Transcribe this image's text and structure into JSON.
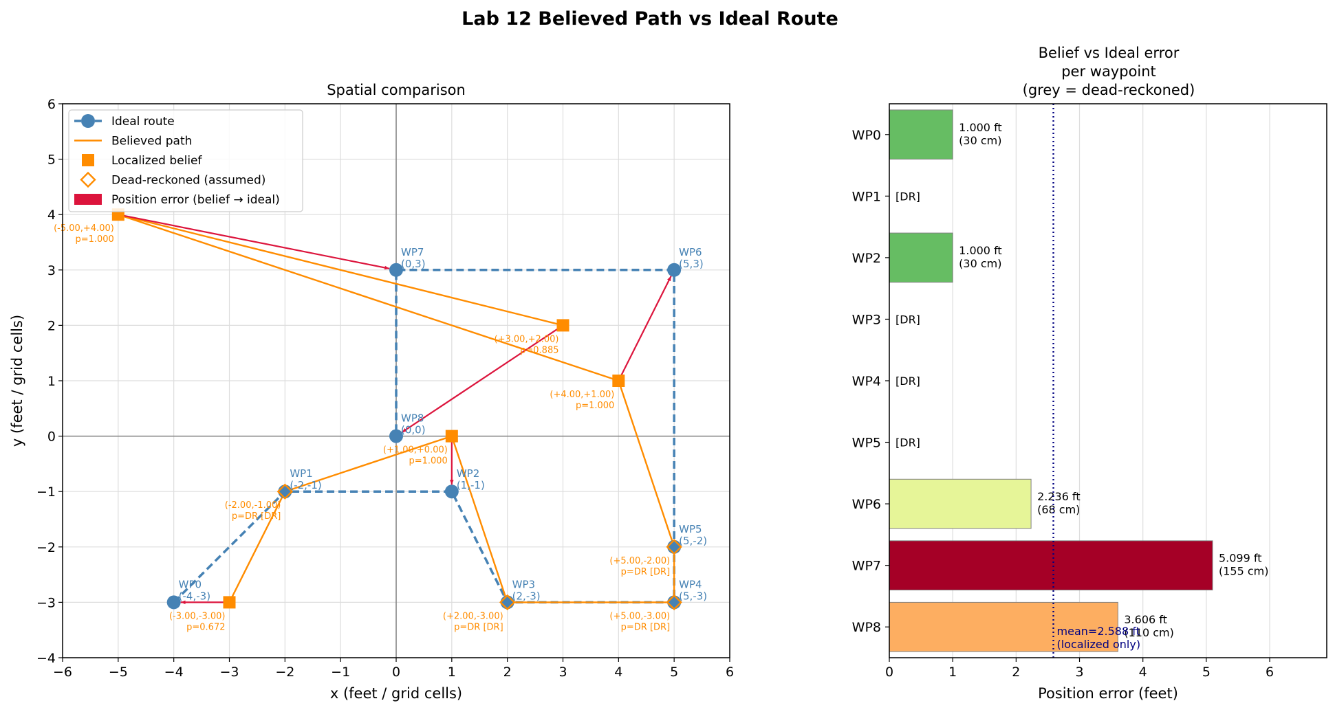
{
  "suptitle": "Lab 12 Believed Path vs Ideal Route",
  "chart_data": [
    {
      "type": "scatter",
      "title": "Spatial comparison",
      "xlabel": "x (feet / grid cells)",
      "ylabel": "y (feet / grid cells)",
      "xlim": [
        -6,
        6
      ],
      "ylim": [
        -4,
        6
      ],
      "xticks": [
        "−6",
        "−5",
        "−4",
        "−3",
        "−2",
        "−1",
        "0",
        "1",
        "2",
        "3",
        "4",
        "5",
        "6"
      ],
      "yticks": [
        "−4",
        "−3",
        "−2",
        "−1",
        "0",
        "1",
        "2",
        "3",
        "4",
        "5",
        "6"
      ],
      "grid": true,
      "legend_position": "upper-left",
      "legend": [
        {
          "label": "Ideal route",
          "kind": "ideal"
        },
        {
          "label": "Believed path",
          "kind": "believed"
        },
        {
          "label": "Localized belief",
          "kind": "localized"
        },
        {
          "label": "Dead-reckoned (assumed)",
          "kind": "dr"
        },
        {
          "label": "Position error (belief → ideal)",
          "kind": "error"
        }
      ],
      "colors": {
        "ideal": "#4682b4",
        "believed": "#ff8c00",
        "error": "#dc143c",
        "axis_zero": "#808080",
        "grid": "#dddddd"
      },
      "waypoints": [
        {
          "name": "WP0",
          "coord": "(-4,-3)",
          "x": -4,
          "y": -3
        },
        {
          "name": "WP1",
          "coord": "(-2,-1)",
          "x": -2,
          "y": -1
        },
        {
          "name": "WP2",
          "coord": "(1,-1)",
          "x": 1,
          "y": -1
        },
        {
          "name": "WP3",
          "coord": "(2,-3)",
          "x": 2,
          "y": -3
        },
        {
          "name": "WP4",
          "coord": "(5,-3)",
          "x": 5,
          "y": -3
        },
        {
          "name": "WP5",
          "coord": "(5,-2)",
          "x": 5,
          "y": -2
        },
        {
          "name": "WP6",
          "coord": "(5,3)",
          "x": 5,
          "y": 3
        },
        {
          "name": "WP7",
          "coord": "(0,3)",
          "x": 0,
          "y": 3
        },
        {
          "name": "WP8",
          "coord": "(0,0)",
          "x": 0,
          "y": 0
        }
      ],
      "beliefs": [
        {
          "wp": "WP0",
          "x": -3,
          "y": -3,
          "localized": true,
          "label1": "(-3.00,-3.00)",
          "label2": "p=0.672"
        },
        {
          "wp": "WP1",
          "x": -2,
          "y": -1,
          "localized": false,
          "label1": "(-2.00,-1.00)",
          "label2": "p=DR [DR]"
        },
        {
          "wp": "WP2",
          "x": 1,
          "y": 0,
          "localized": true,
          "label1": "(+1.00,+0.00)",
          "label2": "p=1.000"
        },
        {
          "wp": "WP3",
          "x": 2,
          "y": -3,
          "localized": false,
          "label1": "(+2.00,-3.00)",
          "label2": "p=DR [DR]"
        },
        {
          "wp": "WP4",
          "x": 5,
          "y": -3,
          "localized": false,
          "label1": "(+5.00,-3.00)",
          "label2": "p=DR [DR]"
        },
        {
          "wp": "WP5",
          "x": 5,
          "y": -2,
          "localized": false,
          "label1": "(+5.00,-2.00)",
          "label2": "p=DR [DR]"
        },
        {
          "wp": "WP6",
          "x": 4,
          "y": 1,
          "localized": true,
          "label1": "(+4.00,+1.00)",
          "label2": "p=1.000"
        },
        {
          "wp": "WP7",
          "x": -5,
          "y": 4,
          "localized": true,
          "label1": "(-5.00,+4.00)",
          "label2": "p=1.000"
        },
        {
          "wp": "WP8",
          "x": 3,
          "y": 2,
          "localized": true,
          "label1": "(+3.00,+2.00)",
          "label2": "p=0.885"
        }
      ]
    },
    {
      "type": "bar",
      "orientation": "horizontal",
      "title_lines": [
        "Belief vs Ideal error",
        "per waypoint",
        "(grey = dead-reckoned)"
      ],
      "xlabel": "Position error (feet)",
      "xlim": [
        0,
        6.9
      ],
      "xticks": [
        "0",
        "1",
        "2",
        "3",
        "4",
        "5",
        "6"
      ],
      "grid": true,
      "categories": [
        "WP0",
        "WP1",
        "WP2",
        "WP3",
        "WP4",
        "WP5",
        "WP6",
        "WP7",
        "WP8"
      ],
      "bars": [
        {
          "category": "WP0",
          "value": 1.0,
          "dr": false,
          "label1": "1.000 ft",
          "label2": "(30 cm)",
          "color": "#66bd63"
        },
        {
          "category": "WP1",
          "value": null,
          "dr": true,
          "label1": "[DR]",
          "label2": "",
          "color": "#bbbbbb"
        },
        {
          "category": "WP2",
          "value": 1.0,
          "dr": false,
          "label1": "1.000 ft",
          "label2": "(30 cm)",
          "color": "#66bd63"
        },
        {
          "category": "WP3",
          "value": null,
          "dr": true,
          "label1": "[DR]",
          "label2": "",
          "color": "#bbbbbb"
        },
        {
          "category": "WP4",
          "value": null,
          "dr": true,
          "label1": "[DR]",
          "label2": "",
          "color": "#bbbbbb"
        },
        {
          "category": "WP5",
          "value": null,
          "dr": true,
          "label1": "[DR]",
          "label2": "",
          "color": "#bbbbbb"
        },
        {
          "category": "WP6",
          "value": 2.236,
          "dr": false,
          "label1": "2.236 ft",
          "label2": "(68 cm)",
          "color": "#e6f598"
        },
        {
          "category": "WP7",
          "value": 5.099,
          "dr": false,
          "label1": "5.099 ft",
          "label2": "(155 cm)",
          "color": "#a50026"
        },
        {
          "category": "WP8",
          "value": 3.606,
          "dr": false,
          "label1": "3.606 ft",
          "label2": "(110 cm)",
          "color": "#fdae61"
        }
      ],
      "mean": {
        "value": 2.588,
        "label1": "mean=2.588 ft",
        "label2": "(localized only)",
        "color": "#000080"
      }
    }
  ]
}
